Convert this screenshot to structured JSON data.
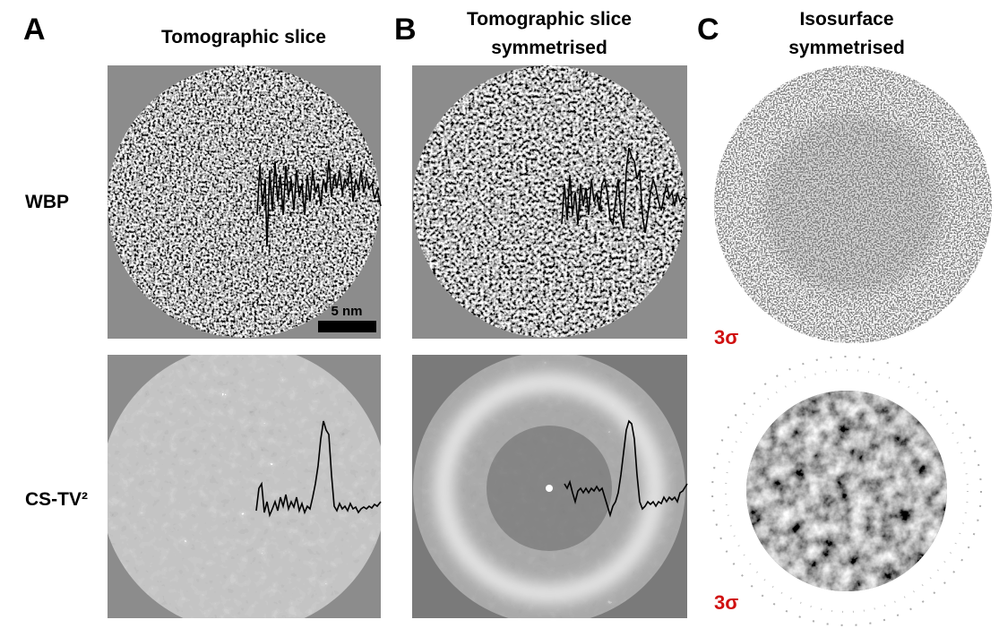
{
  "panels": [
    {
      "letter": "A",
      "title_lines": [
        "Tomographic slice"
      ]
    },
    {
      "letter": "B",
      "title_lines": [
        "Tomographic slice",
        "symmetrised"
      ]
    },
    {
      "letter": "C",
      "title_lines": [
        "Isosurface",
        "symmetrised"
      ]
    }
  ],
  "rows": [
    "WBP",
    "CS-TV²"
  ],
  "scale_bar": "5 nm",
  "threshold_labels": [
    "3σ",
    "3σ"
  ]
}
